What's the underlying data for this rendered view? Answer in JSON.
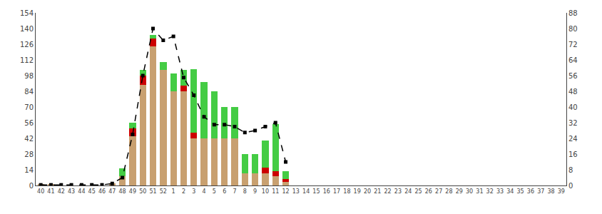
{
  "chart_data": {
    "type": "bar",
    "stacked": true,
    "grid": false,
    "categories": [
      "40",
      "41",
      "42",
      "43",
      "44",
      "45",
      "46",
      "47",
      "48",
      "49",
      "50",
      "51",
      "52",
      "1",
      "2",
      "3",
      "4",
      "5",
      "6",
      "7",
      "8",
      "9",
      "10",
      "11",
      "12",
      "13",
      "14",
      "15",
      "16",
      "17",
      "18",
      "19",
      "20",
      "21",
      "22",
      "23",
      "24",
      "25",
      "26",
      "27",
      "28",
      "29",
      "30",
      "31",
      "32",
      "33",
      "34",
      "35",
      "36",
      "37",
      "38",
      "39"
    ],
    "series": [
      {
        "color": "#c8a070",
        "values": [
          1,
          1,
          0,
          0,
          0,
          0,
          0,
          2,
          8,
          44,
          90,
          124,
          103,
          84,
          84,
          42,
          42,
          42,
          42,
          42,
          11,
          11,
          11,
          8,
          3,
          0,
          0,
          0,
          0,
          0,
          0,
          0,
          0,
          0,
          0,
          0,
          0,
          0,
          0,
          0,
          0,
          0,
          0,
          0,
          0,
          0,
          0,
          0,
          0,
          0,
          0,
          0
        ]
      },
      {
        "color": "#cc0000",
        "values": [
          0,
          0,
          0,
          0,
          0,
          0,
          0,
          0,
          0,
          7,
          8,
          7,
          0,
          0,
          5,
          5,
          0,
          0,
          0,
          0,
          0,
          0,
          5,
          5,
          3,
          0,
          0,
          0,
          0,
          0,
          0,
          0,
          0,
          0,
          0,
          0,
          0,
          0,
          0,
          0,
          0,
          0,
          0,
          0,
          0,
          0,
          0,
          0,
          0,
          0,
          0,
          0
        ]
      },
      {
        "color": "#44cc44",
        "values": [
          0,
          0,
          0,
          0,
          0,
          0,
          0,
          0,
          7,
          5,
          5,
          3,
          7,
          16,
          14,
          57,
          50,
          42,
          28,
          28,
          17,
          17,
          24,
          42,
          7,
          0,
          0,
          0,
          0,
          0,
          0,
          0,
          0,
          0,
          0,
          0,
          0,
          0,
          0,
          0,
          0,
          0,
          0,
          0,
          0,
          0,
          0,
          0,
          0,
          0,
          0,
          0
        ]
      },
      {
        "type": "line",
        "axis": "y2",
        "color": "black",
        "marker": "square",
        "line_style": "dashed",
        "values": [
          0.3,
          0.3,
          0.3,
          0.3,
          0.3,
          0.3,
          0.3,
          1,
          4,
          26,
          56,
          80,
          74,
          76,
          55,
          46,
          35,
          31,
          31,
          30,
          27,
          28,
          30,
          32,
          12,
          null,
          null,
          null,
          null,
          null,
          null,
          null,
          null,
          null,
          null,
          null,
          null,
          null,
          null,
          null,
          null,
          null,
          null,
          null,
          null,
          null,
          null,
          null,
          null,
          null,
          null,
          null
        ]
      }
    ],
    "ylim": [
      0,
      154
    ],
    "yticks": [
      0,
      14,
      28,
      42,
      56,
      70,
      84,
      98,
      112,
      126,
      140,
      154
    ],
    "y2lim": [
      0,
      88
    ],
    "y2ticks": [
      0,
      8,
      16,
      24,
      32,
      40,
      48,
      56,
      64,
      72,
      80,
      88
    ]
  }
}
